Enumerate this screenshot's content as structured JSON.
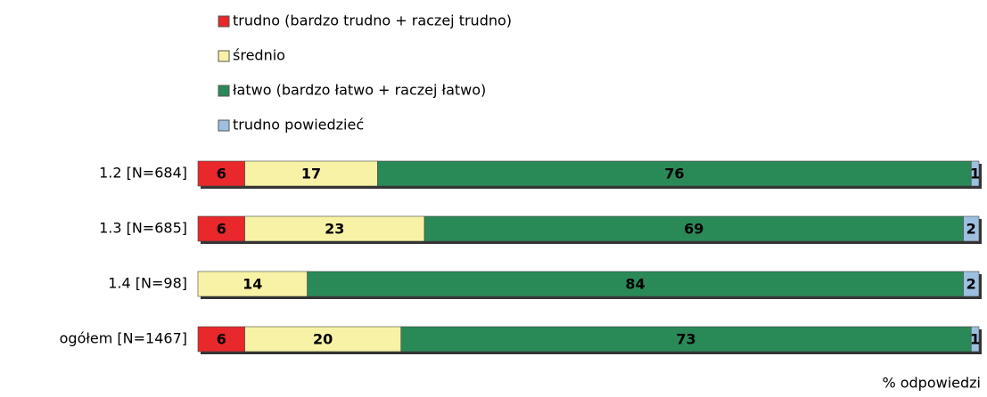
{
  "chart_data": {
    "type": "stacked_bar_horizontal",
    "categories": [
      "1.2 [N=684]",
      "1.3 [N=685]",
      "1.4 [N=98]",
      "ogółem [N=1467]"
    ],
    "series": [
      {
        "name": "trudno (bardzo trudno + raczej trudno)",
        "color": "#e8282b",
        "label_color": "#ffffff",
        "values": [
          6,
          6,
          null,
          6
        ]
      },
      {
        "name": "średnio",
        "color": "#f7f2a6",
        "label_color": "#000000",
        "values": [
          17,
          23,
          14,
          20
        ]
      },
      {
        "name": "łatwo (bardzo łatwo + raczej łatwo)",
        "color": "#2a8a57",
        "label_color": "#ffffff",
        "values": [
          76,
          69,
          84,
          73
        ]
      },
      {
        "name": "trudno powiedzieć",
        "color": "#9dbfe0",
        "label_color": "#1a1a1a",
        "values": [
          1,
          2,
          2,
          1
        ]
      }
    ],
    "xlim": [
      0,
      100
    ],
    "x_label": "% odpowiedzi"
  }
}
